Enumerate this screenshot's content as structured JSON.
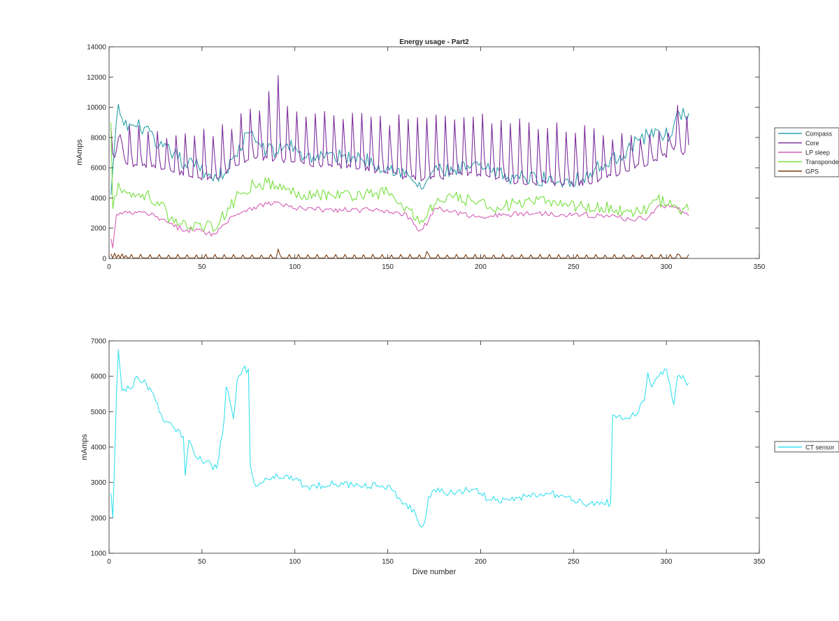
{
  "figure": {
    "background": "#ffffff"
  },
  "chart_data": [
    {
      "type": "line",
      "title": "Energy usage - Part2",
      "xlabel": "",
      "ylabel": "mAmps",
      "xlim": [
        0,
        350
      ],
      "ylim": [
        0,
        14000
      ],
      "xticks": [
        0,
        50,
        100,
        150,
        200,
        250,
        300,
        350
      ],
      "yticks": [
        0,
        2000,
        4000,
        6000,
        8000,
        10000,
        12000,
        14000
      ],
      "grid": false,
      "legend_position": "outside-right",
      "x_range": [
        1,
        312
      ],
      "series": [
        {
          "name": "Compass",
          "color": "#2a9fa9",
          "style": "noisy",
          "anchors": [
            [
              1,
              4200
            ],
            [
              5,
              10200
            ],
            [
              8,
              8800
            ],
            [
              15,
              8700
            ],
            [
              20,
              8700
            ],
            [
              25,
              7400
            ],
            [
              35,
              7000
            ],
            [
              42,
              6000
            ],
            [
              45,
              6400
            ],
            [
              55,
              5400
            ],
            [
              63,
              5700
            ],
            [
              68,
              6800
            ],
            [
              75,
              8300
            ],
            [
              80,
              7700
            ],
            [
              85,
              7200
            ],
            [
              90,
              7000
            ],
            [
              95,
              7500
            ],
            [
              100,
              7400
            ],
            [
              105,
              6700
            ],
            [
              115,
              6800
            ],
            [
              125,
              6700
            ],
            [
              135,
              6700
            ],
            [
              145,
              6200
            ],
            [
              155,
              5900
            ],
            [
              163,
              5200
            ],
            [
              168,
              4600
            ],
            [
              175,
              5900
            ],
            [
              185,
              5700
            ],
            [
              195,
              6100
            ],
            [
              205,
              5800
            ],
            [
              215,
              5400
            ],
            [
              230,
              5300
            ],
            [
              245,
              5100
            ],
            [
              255,
              5300
            ],
            [
              265,
              6100
            ],
            [
              275,
              6800
            ],
            [
              285,
              7800
            ],
            [
              295,
              8500
            ],
            [
              302,
              8000
            ],
            [
              306,
              9800
            ],
            [
              310,
              9400
            ],
            [
              312,
              9600
            ]
          ],
          "noise": 500
        },
        {
          "name": "Core",
          "color": "#7e2f9c",
          "style": "spiky",
          "anchors": [
            [
              1,
              5500
            ],
            [
              5,
              7800
            ],
            [
              10,
              6200
            ],
            [
              20,
              6200
            ],
            [
              30,
              5800
            ],
            [
              40,
              5600
            ],
            [
              50,
              5200
            ],
            [
              60,
              5500
            ],
            [
              70,
              6200
            ],
            [
              80,
              6600
            ],
            [
              90,
              6600
            ],
            [
              100,
              6400
            ],
            [
              110,
              6200
            ],
            [
              120,
              6200
            ],
            [
              130,
              6000
            ],
            [
              140,
              5900
            ],
            [
              150,
              5600
            ],
            [
              160,
              5400
            ],
            [
              170,
              5300
            ],
            [
              180,
              5300
            ],
            [
              190,
              5600
            ],
            [
              200,
              5400
            ],
            [
              210,
              5200
            ],
            [
              220,
              5100
            ],
            [
              230,
              5000
            ],
            [
              240,
              4900
            ],
            [
              250,
              4900
            ],
            [
              260,
              5100
            ],
            [
              270,
              5500
            ],
            [
              280,
              5900
            ],
            [
              290,
              6300
            ],
            [
              300,
              6800
            ],
            [
              305,
              7500
            ],
            [
              312,
              6700
            ]
          ],
          "spike_period": 5,
          "spike_peaks": [
            [
              5,
              8500
            ],
            [
              15,
              8400
            ],
            [
              30,
              8200
            ],
            [
              45,
              8200
            ],
            [
              60,
              8400
            ],
            [
              75,
              9600
            ],
            [
              90,
              11200
            ],
            [
              100,
              9400
            ],
            [
              120,
              9600
            ],
            [
              140,
              9300
            ],
            [
              150,
              9200
            ],
            [
              160,
              9100
            ],
            [
              180,
              9400
            ],
            [
              200,
              9300
            ],
            [
              220,
              8900
            ],
            [
              240,
              8700
            ],
            [
              260,
              8400
            ],
            [
              275,
              8000
            ],
            [
              290,
              8400
            ],
            [
              300,
              8300
            ],
            [
              306,
              10500
            ],
            [
              312,
              9000
            ]
          ],
          "spike_overrides": [
            [
              91,
              12100
            ]
          ]
        },
        {
          "name": "LP sleep",
          "color": "#d35fb7",
          "style": "noisy",
          "anchors": [
            [
              1,
              1300
            ],
            [
              2,
              700
            ],
            [
              4,
              2900
            ],
            [
              10,
              3000
            ],
            [
              20,
              3000
            ],
            [
              28,
              2600
            ],
            [
              35,
              2100
            ],
            [
              42,
              1900
            ],
            [
              50,
              1800
            ],
            [
              57,
              1600
            ],
            [
              60,
              2000
            ],
            [
              65,
              2700
            ],
            [
              75,
              3300
            ],
            [
              85,
              3600
            ],
            [
              90,
              3700
            ],
            [
              100,
              3300
            ],
            [
              120,
              3200
            ],
            [
              140,
              3200
            ],
            [
              155,
              3100
            ],
            [
              162,
              2700
            ],
            [
              167,
              1800
            ],
            [
              172,
              2500
            ],
            [
              175,
              3300
            ],
            [
              185,
              3100
            ],
            [
              195,
              2800
            ],
            [
              205,
              2800
            ],
            [
              215,
              2900
            ],
            [
              230,
              3000
            ],
            [
              250,
              2900
            ],
            [
              270,
              2800
            ],
            [
              280,
              2600
            ],
            [
              290,
              2700
            ],
            [
              295,
              3400
            ],
            [
              303,
              3500
            ],
            [
              312,
              2800
            ]
          ],
          "noise": 180
        },
        {
          "name": "Transponder",
          "color": "#77e040",
          "style": "noisy",
          "anchors": [
            [
              1,
              9000
            ],
            [
              2,
              3300
            ],
            [
              5,
              5000
            ],
            [
              10,
              4300
            ],
            [
              15,
              4200
            ],
            [
              20,
              4300
            ],
            [
              25,
              3500
            ],
            [
              30,
              3500
            ],
            [
              32,
              2400
            ],
            [
              38,
              2300
            ],
            [
              42,
              2000
            ],
            [
              47,
              2400
            ],
            [
              52,
              2200
            ],
            [
              57,
              1900
            ],
            [
              60,
              2600
            ],
            [
              65,
              3300
            ],
            [
              70,
              4300
            ],
            [
              78,
              4900
            ],
            [
              85,
              5000
            ],
            [
              90,
              4800
            ],
            [
              100,
              4300
            ],
            [
              110,
              4300
            ],
            [
              120,
              4200
            ],
            [
              130,
              4200
            ],
            [
              140,
              4300
            ],
            [
              150,
              4400
            ],
            [
              155,
              3700
            ],
            [
              162,
              3200
            ],
            [
              167,
              2300
            ],
            [
              172,
              3200
            ],
            [
              178,
              3800
            ],
            [
              185,
              4000
            ],
            [
              195,
              3800
            ],
            [
              205,
              3400
            ],
            [
              220,
              3600
            ],
            [
              240,
              3800
            ],
            [
              255,
              3400
            ],
            [
              265,
              3400
            ],
            [
              280,
              3100
            ],
            [
              290,
              3300
            ],
            [
              295,
              3900
            ],
            [
              303,
              3400
            ],
            [
              312,
              3200
            ]
          ],
          "noise": 420
        },
        {
          "name": "GPS",
          "color": "#7a3b0f",
          "style": "pulse",
          "base": 30,
          "pulse_period": 5,
          "pulse_height": 250,
          "start_values": [
            [
              1,
              300
            ],
            [
              3,
              350
            ],
            [
              5,
              250
            ],
            [
              7,
              300
            ],
            [
              9,
              200
            ]
          ],
          "pulse_overrides": [
            [
              91,
              620
            ],
            [
              171,
              460
            ],
            [
              306,
              300
            ]
          ]
        }
      ]
    },
    {
      "type": "line",
      "title": "",
      "xlabel": "Dive number",
      "ylabel": "mAmps",
      "xlim": [
        0,
        350
      ],
      "ylim": [
        1000,
        7000
      ],
      "xticks": [
        0,
        50,
        100,
        150,
        200,
        250,
        300,
        350
      ],
      "yticks": [
        1000,
        2000,
        3000,
        4000,
        5000,
        6000,
        7000
      ],
      "grid": false,
      "legend_position": "outside-right",
      "x_range": [
        1,
        312
      ],
      "series": [
        {
          "name": "CT sensor",
          "color": "#36e0ee",
          "style": "noisy",
          "anchors": [
            [
              1,
              2700
            ],
            [
              2,
              2000
            ],
            [
              4,
              5500
            ],
            [
              5,
              6750
            ],
            [
              7,
              5600
            ],
            [
              12,
              5650
            ],
            [
              15,
              6000
            ],
            [
              20,
              5800
            ],
            [
              25,
              5300
            ],
            [
              30,
              4700
            ],
            [
              35,
              4550
            ],
            [
              40,
              4300
            ],
            [
              41,
              3200
            ],
            [
              43,
              4200
            ],
            [
              47,
              3700
            ],
            [
              50,
              3600
            ],
            [
              55,
              3500
            ],
            [
              58,
              3400
            ],
            [
              62,
              4800
            ],
            [
              63,
              5700
            ],
            [
              65,
              5300
            ],
            [
              67,
              4800
            ],
            [
              69,
              5900
            ],
            [
              72,
              6200
            ],
            [
              75,
              6200
            ],
            [
              76,
              3500
            ],
            [
              78,
              3000
            ],
            [
              80,
              2900
            ],
            [
              85,
              3100
            ],
            [
              95,
              3200
            ],
            [
              100,
              3100
            ],
            [
              105,
              2900
            ],
            [
              115,
              2900
            ],
            [
              125,
              3000
            ],
            [
              135,
              2900
            ],
            [
              145,
              2900
            ],
            [
              152,
              2800
            ],
            [
              160,
              2400
            ],
            [
              165,
              2100
            ],
            [
              167,
              1800
            ],
            [
              170,
              1900
            ],
            [
              172,
              2600
            ],
            [
              175,
              2800
            ],
            [
              185,
              2700
            ],
            [
              195,
              2800
            ],
            [
              200,
              2700
            ],
            [
              205,
              2500
            ],
            [
              215,
              2500
            ],
            [
              225,
              2600
            ],
            [
              235,
              2700
            ],
            [
              245,
              2600
            ],
            [
              255,
              2400
            ],
            [
              265,
              2450
            ],
            [
              270,
              2400
            ],
            [
              271,
              4900
            ],
            [
              275,
              4900
            ],
            [
              280,
              4800
            ],
            [
              285,
              5000
            ],
            [
              288,
              5300
            ],
            [
              290,
              6100
            ],
            [
              292,
              5700
            ],
            [
              296,
              6000
            ],
            [
              300,
              6200
            ],
            [
              304,
              5200
            ],
            [
              306,
              6000
            ],
            [
              310,
              5900
            ],
            [
              312,
              5800
            ]
          ],
          "noise": 110
        }
      ]
    }
  ]
}
